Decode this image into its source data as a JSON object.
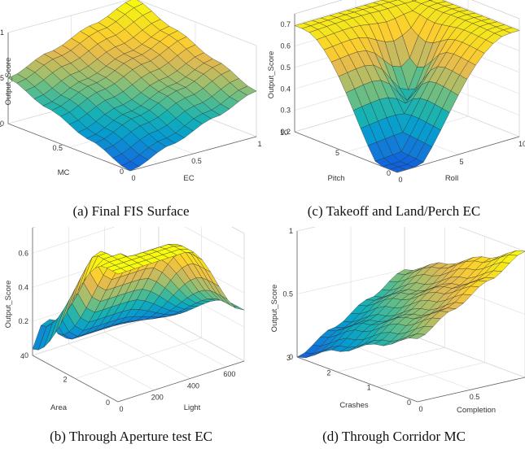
{
  "chart_data": [
    {
      "type": "surface",
      "caption": "(a) Final FIS Surface",
      "xlabel": "EC",
      "ylabel": "MC",
      "zlabel": "Output_Score",
      "xticks": [
        "0",
        "0.5",
        "1"
      ],
      "yticks": [
        "0",
        "0.5",
        "1"
      ],
      "zticks": [
        "0",
        "0.5",
        "1"
      ],
      "xlim": [
        0,
        1
      ],
      "ylim": [
        0,
        1
      ],
      "zlim": [
        0,
        1
      ],
      "grid": true,
      "colormap": "parula",
      "surface": "output ~0 at EC=0,MC=0; ~1 at EC=1,MC=1; ~0.5 at the other two corners; smooth stepped ramp"
    },
    {
      "type": "surface",
      "caption": "(c) Takeoff and Land/Perch EC",
      "xlabel": "Roll",
      "ylabel": "Pitch",
      "zlabel": "Output_Score",
      "xticks": [
        "0",
        "5",
        "10"
      ],
      "yticks": [
        "0",
        "5",
        "10"
      ],
      "zticks": [
        "0.2",
        "0.3",
        "0.4",
        "0.5",
        "0.6",
        "0.7"
      ],
      "xlim": [
        0,
        10
      ],
      "ylim": [
        0,
        10
      ],
      "zlim": [
        0.2,
        0.75
      ],
      "grid": true,
      "colormap": "parula",
      "surface": "ridge ~0.75 along the far and right edges, ~0.5 at the left and near corners, central crater ~0.5, front valley ~0.25"
    },
    {
      "type": "surface",
      "caption": "(b) Through Aperture test EC",
      "xlabel": "Light",
      "ylabel": "Area",
      "zlabel": "Output_Score",
      "xticks": [
        "0",
        "200",
        "400",
        "600"
      ],
      "yticks": [
        "0",
        "2",
        "4"
      ],
      "zticks": [
        "0",
        "0.2",
        "0.4",
        "0.6"
      ],
      "xlim": [
        0,
        700
      ],
      "ylim": [
        0,
        4
      ],
      "zlim": [
        0,
        0.75
      ],
      "grid": true,
      "colormap": "parula",
      "surface": "plateau ~0.75 at low Area / mid Light, falling to ~0 at high Area / high Light, sharp ridge at low Light"
    },
    {
      "type": "surface",
      "caption": "(d) Through Corridor MC",
      "xlabel": "Completion",
      "ylabel": "Crashes",
      "zlabel": "Output_Score",
      "xticks": [
        "0",
        "0.5",
        "1"
      ],
      "yticks": [
        "0",
        "1",
        "2",
        "3"
      ],
      "zticks": [
        "0",
        "0.5",
        "1"
      ],
      "xlim": [
        0,
        1
      ],
      "ylim": [
        0,
        3
      ],
      "zlim": [
        0,
        1
      ],
      "grid": true,
      "colormap": "parula",
      "surface": "peak ~1 at Completion=1, Crashes=0; ~0 at Completion=0, Crashes=3; ~0.5 at the other two corners"
    }
  ]
}
